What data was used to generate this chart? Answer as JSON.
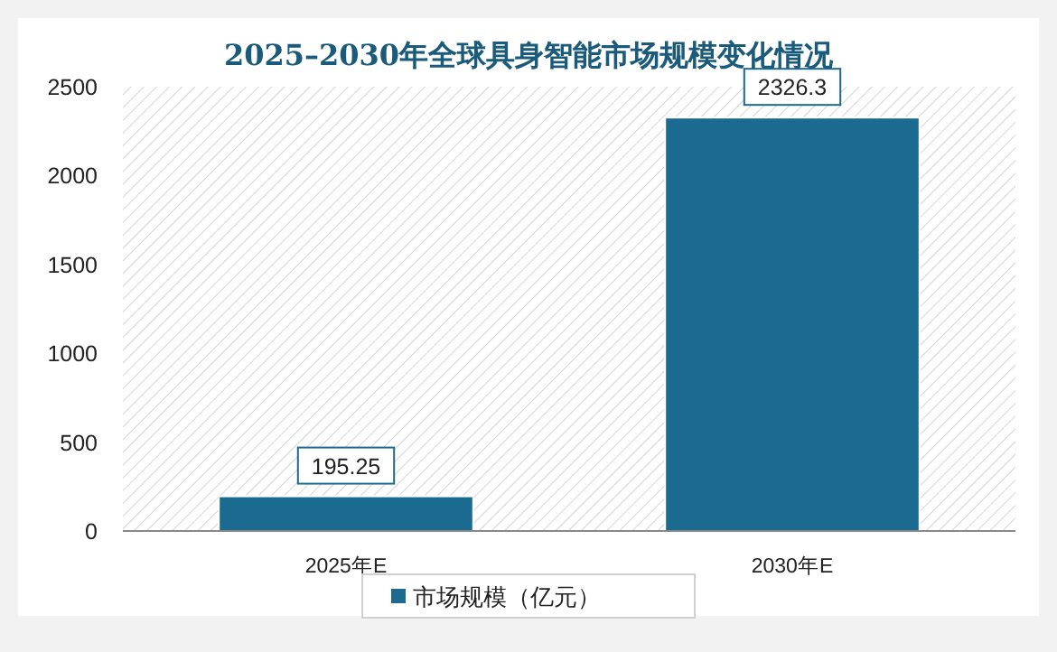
{
  "chart_data": {
    "type": "bar",
    "title": "2025–2030年全球具身智能市场规模变化情况",
    "categories": [
      "2025年E",
      "2030年E"
    ],
    "series": [
      {
        "name": "市场规模（亿元）",
        "color": "#1b6a8f",
        "values": [
          195.25,
          2326.3
        ]
      }
    ],
    "ylim": [
      0,
      2500
    ],
    "yticks": [
      0,
      500,
      1000,
      1500,
      2000,
      2500
    ],
    "data_labels": true,
    "legend": "bottom"
  }
}
